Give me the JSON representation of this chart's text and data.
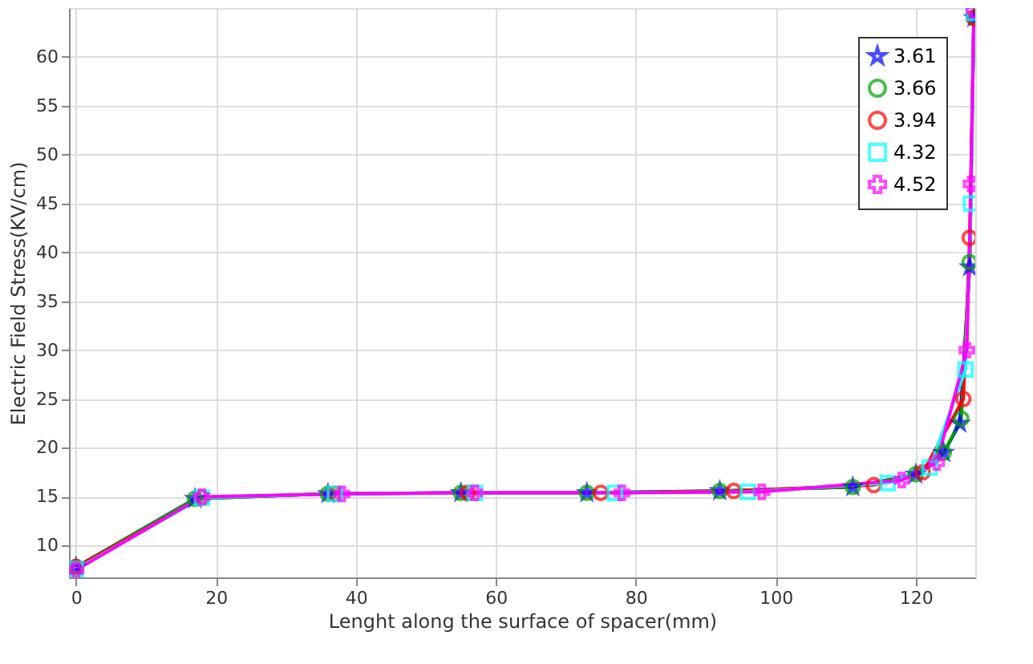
{
  "chart_data": {
    "type": "line",
    "xlabel": "Lenght along the surface of spacer(mm)",
    "ylabel": "Electric Field Stress(KV/cm)",
    "xlim": [
      -1,
      128.5
    ],
    "xticks": [
      0,
      20,
      40,
      60,
      80,
      100,
      120
    ],
    "ylim": [
      6.75,
      65
    ],
    "yticks": [
      10,
      15,
      20,
      25,
      30,
      35,
      40,
      45,
      50,
      55,
      60
    ],
    "grid": true,
    "legend": "top right",
    "series": [
      {
        "name": "3.61",
        "color": "#0000ff",
        "marker": "star",
        "x": [
          0,
          17,
          36,
          55,
          73,
          92,
          111,
          120,
          124,
          126.3,
          127.7,
          128.3
        ],
        "values": [
          7.8,
          14.8,
          15.3,
          15.4,
          15.4,
          15.6,
          16.0,
          17.3,
          19.5,
          22.5,
          38.5,
          64
        ]
      },
      {
        "name": "3.66",
        "color": "#00a000",
        "marker": "circle",
        "x": [
          0,
          17,
          36,
          55,
          73,
          92,
          111,
          120,
          124,
          126.5,
          127.7,
          128.3
        ],
        "values": [
          7.8,
          14.8,
          15.3,
          15.4,
          15.4,
          15.6,
          16.0,
          17.3,
          19.5,
          23,
          39,
          64
        ]
      },
      {
        "name": "3.94",
        "color": "#ff0000",
        "marker": "circle",
        "x": [
          0,
          18,
          37,
          56,
          75,
          94,
          114,
          121,
          126.8,
          127.7,
          128.3
        ],
        "values": [
          7.8,
          14.9,
          15.3,
          15.4,
          15.4,
          15.6,
          16.2,
          17.5,
          25,
          41.5,
          64
        ]
      },
      {
        "name": "4.32",
        "color": "#00ffff",
        "marker": "square",
        "x": [
          0,
          18,
          37,
          57,
          77,
          96,
          116,
          122,
          127.1,
          127.9,
          128.3
        ],
        "values": [
          7.6,
          14.9,
          15.3,
          15.4,
          15.4,
          15.5,
          16.4,
          18,
          28,
          45,
          64.5
        ]
      },
      {
        "name": "4.52",
        "color": "#ff00ff",
        "marker": "cross",
        "x": [
          0,
          18,
          38,
          57,
          78,
          98,
          118,
          123,
          127.3,
          127.9,
          128.3
        ],
        "values": [
          7.5,
          15.0,
          15.3,
          15.4,
          15.4,
          15.5,
          16.7,
          18.5,
          30,
          47,
          64.8
        ]
      }
    ]
  }
}
